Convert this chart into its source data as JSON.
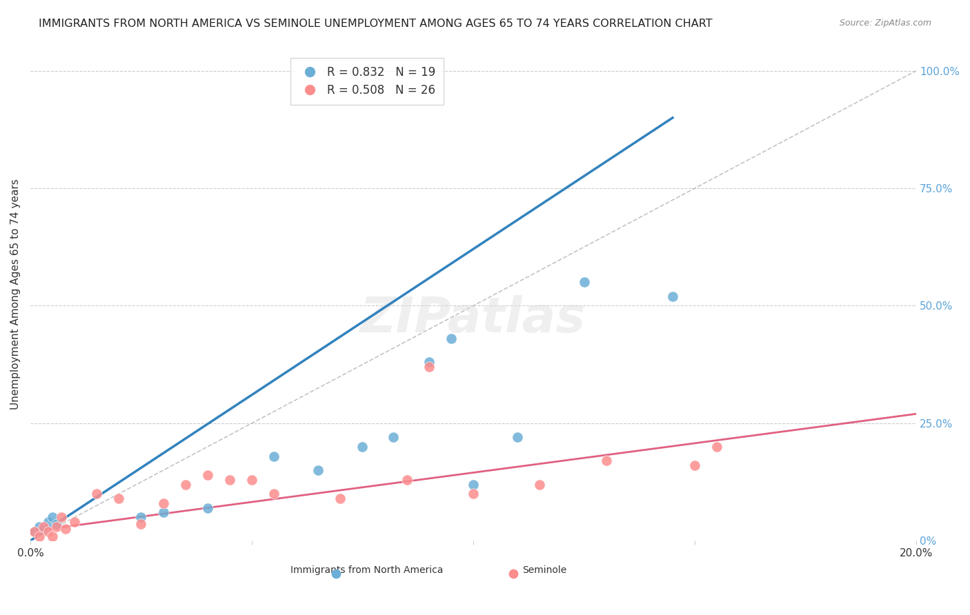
{
  "title": "IMMIGRANTS FROM NORTH AMERICA VS SEMINOLE UNEMPLOYMENT AMONG AGES 65 TO 74 YEARS CORRELATION CHART",
  "source": "Source: ZipAtlas.com",
  "xlabel": "",
  "ylabel": "Unemployment Among Ages 65 to 74 years",
  "xlim": [
    0.0,
    0.2
  ],
  "ylim": [
    0.0,
    1.05
  ],
  "xticks": [
    0.0,
    0.05,
    0.1,
    0.15,
    0.2
  ],
  "xtick_labels": [
    "0.0%",
    "",
    "",
    "",
    "20.0%"
  ],
  "ytick_labels_right": [
    "0%",
    "25.0%",
    "50.0%",
    "75.0%",
    "100.0%"
  ],
  "yticks_right": [
    0.0,
    0.25,
    0.5,
    0.75,
    1.0
  ],
  "legend_blue_r": "R = 0.832",
  "legend_blue_n": "N = 19",
  "legend_pink_r": "R = 0.508",
  "legend_pink_n": "N = 26",
  "blue_color": "#6baed6",
  "pink_color": "#fc8d8d",
  "blue_line_color": "#3182bd",
  "pink_line_color": "#e06080",
  "ref_line_color": "#aaaaaa",
  "background_color": "#ffffff",
  "watermark": "ZIPatlas",
  "blue_scatter_x": [
    0.001,
    0.002,
    0.003,
    0.004,
    0.005,
    0.006,
    0.025,
    0.03,
    0.04,
    0.055,
    0.065,
    0.075,
    0.082,
    0.09,
    0.095,
    0.1,
    0.11,
    0.125,
    0.145
  ],
  "blue_scatter_y": [
    0.02,
    0.03,
    0.025,
    0.04,
    0.05,
    0.035,
    0.05,
    0.06,
    0.07,
    0.18,
    0.15,
    0.2,
    0.22,
    0.38,
    0.43,
    0.12,
    0.22,
    0.55,
    0.52
  ],
  "pink_scatter_x": [
    0.001,
    0.002,
    0.003,
    0.004,
    0.005,
    0.006,
    0.007,
    0.008,
    0.01,
    0.015,
    0.02,
    0.025,
    0.03,
    0.035,
    0.04,
    0.045,
    0.05,
    0.055,
    0.07,
    0.085,
    0.09,
    0.1,
    0.115,
    0.13,
    0.15,
    0.155
  ],
  "pink_scatter_y": [
    0.02,
    0.01,
    0.03,
    0.02,
    0.01,
    0.03,
    0.05,
    0.025,
    0.04,
    0.1,
    0.09,
    0.035,
    0.08,
    0.12,
    0.14,
    0.13,
    0.13,
    0.1,
    0.09,
    0.13,
    0.37,
    0.1,
    0.12,
    0.17,
    0.16,
    0.2
  ],
  "blue_line_x": [
    0.0,
    0.145
  ],
  "blue_line_y": [
    0.0,
    0.9
  ],
  "pink_line_x": [
    0.0,
    0.2
  ],
  "pink_line_y": [
    0.02,
    0.27
  ],
  "ref_line_x": [
    0.0,
    0.2
  ],
  "ref_line_y": [
    0.0,
    1.0
  ]
}
